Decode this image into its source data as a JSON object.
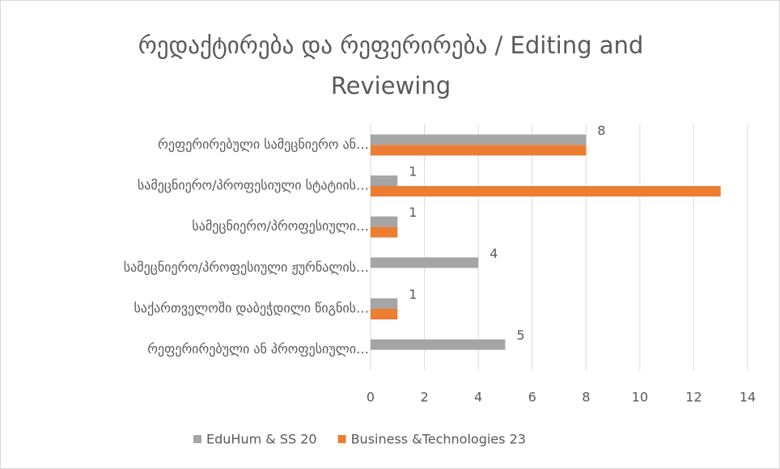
{
  "chart_data": {
    "type": "hbar",
    "title": "რედაქტირება და რეფერირება / Editing and Reviewing",
    "categories": [
      "რეფერირებული სამეცნიერო ან…",
      "სამეცნიერო/პროფესიული სტატიის…",
      "სამეცნიერო/პროფესიული…",
      "სამეცნიერო/პროფესიული ჟურნალის…",
      "საქართველოში დაბეჭდილი წიგნის…",
      "რეფერირებული ან პროფესიული…"
    ],
    "series": [
      {
        "name": "EduHum & SS 20",
        "color": "#a5a5a5",
        "values": [
          8,
          1,
          1,
          4,
          1,
          5
        ],
        "data_labels": true
      },
      {
        "name": "Business &Technologies 23",
        "color": "#ed7d31",
        "values": [
          8,
          13,
          1,
          null,
          1,
          null
        ],
        "data_labels": false
      }
    ],
    "xlim": [
      0,
      14
    ],
    "xticks": [
      0,
      2,
      4,
      6,
      8,
      10,
      12,
      14
    ],
    "grid": true,
    "legend": "bottom"
  }
}
